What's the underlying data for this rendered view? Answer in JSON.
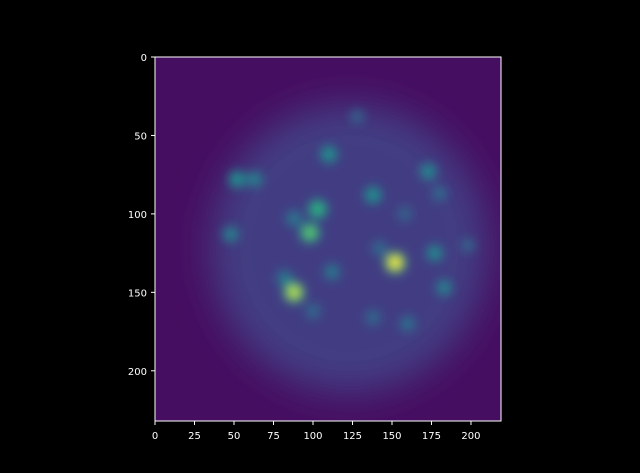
{
  "figure": {
    "background": "#000000",
    "colormap": "viridis",
    "colormap_low": "#440154",
    "colormap_high": "#fde725"
  },
  "chart_data": {
    "type": "heatmap",
    "title": "",
    "xlabel": "",
    "ylabel": "",
    "xlim": [
      0,
      219
    ],
    "ylim": [
      232,
      0
    ],
    "x_ticks": [
      0,
      25,
      50,
      75,
      100,
      125,
      150,
      175,
      200
    ],
    "y_ticks": [
      0,
      50,
      100,
      150,
      200
    ],
    "x_tick_labels": [
      "0",
      "25",
      "50",
      "75",
      "100",
      "125",
      "150",
      "175",
      "200"
    ],
    "y_tick_labels": [
      "0",
      "50",
      "100",
      "150",
      "200"
    ],
    "grid": false,
    "legend": "none",
    "background_level": 0.05,
    "cell_region": {
      "center_x": 123,
      "center_y": 122,
      "radius_x": 88,
      "radius_y": 92,
      "level": 0.22
    },
    "bright_spots": [
      {
        "x": 98,
        "y": 112,
        "level": 0.85
      },
      {
        "x": 103,
        "y": 97,
        "level": 0.78
      },
      {
        "x": 88,
        "y": 150,
        "level": 0.95
      },
      {
        "x": 152,
        "y": 131,
        "level": 1.0
      },
      {
        "x": 110,
        "y": 62,
        "level": 0.6
      },
      {
        "x": 52,
        "y": 78,
        "level": 0.6
      },
      {
        "x": 63,
        "y": 78,
        "level": 0.5
      },
      {
        "x": 138,
        "y": 88,
        "level": 0.6
      },
      {
        "x": 173,
        "y": 73,
        "level": 0.55
      },
      {
        "x": 177,
        "y": 125,
        "level": 0.55
      },
      {
        "x": 183,
        "y": 147,
        "level": 0.5
      },
      {
        "x": 48,
        "y": 113,
        "level": 0.5
      },
      {
        "x": 88,
        "y": 103,
        "level": 0.45
      },
      {
        "x": 112,
        "y": 137,
        "level": 0.45
      },
      {
        "x": 160,
        "y": 170,
        "level": 0.4
      },
      {
        "x": 138,
        "y": 166,
        "level": 0.35
      },
      {
        "x": 100,
        "y": 162,
        "level": 0.35
      },
      {
        "x": 82,
        "y": 141,
        "level": 0.45
      },
      {
        "x": 128,
        "y": 38,
        "level": 0.3
      },
      {
        "x": 158,
        "y": 100,
        "level": 0.3
      },
      {
        "x": 198,
        "y": 120,
        "level": 0.3
      },
      {
        "x": 142,
        "y": 122,
        "level": 0.35
      },
      {
        "x": 180,
        "y": 87,
        "level": 0.35
      }
    ]
  }
}
